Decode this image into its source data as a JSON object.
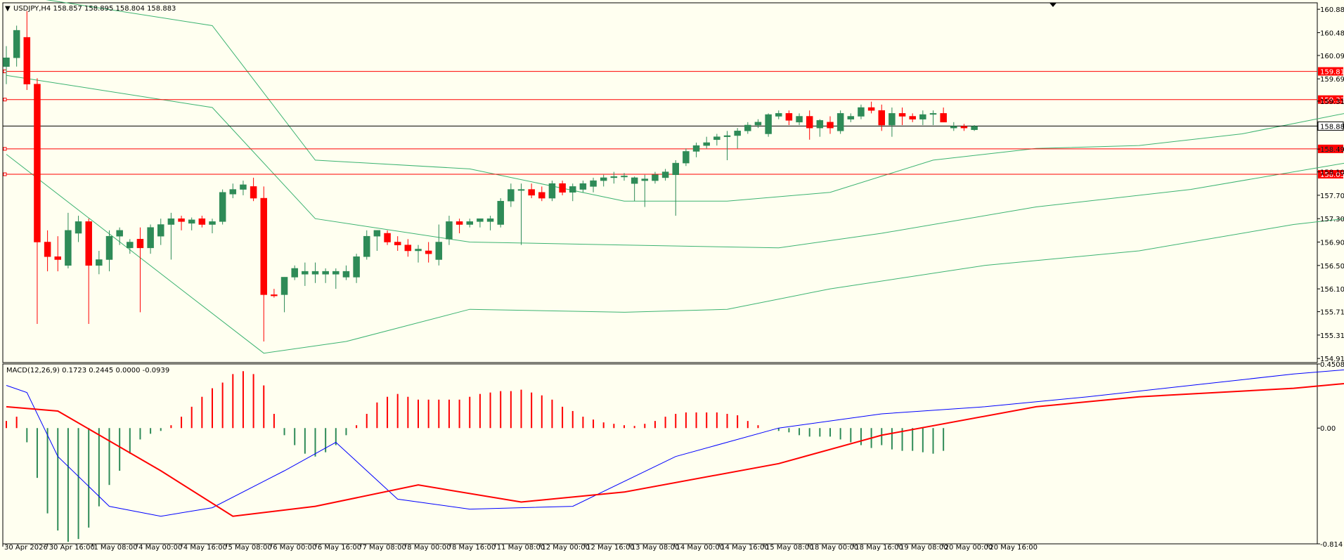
{
  "header": {
    "symbol_line": "USDJPY,H4  158.857 158.895 158.804 158.883",
    "indicator_line": "MACD(12,26,9) 0.1723 0.2445 0.0000 -0.0939"
  },
  "colors": {
    "background": "#fffff0",
    "bull": "#2e8b57",
    "bear": "#ff0000",
    "bands": "#3cb371",
    "macd_line": "#0000ff",
    "signal_line": "#ff0000",
    "level_line": "#ff0000",
    "price_line": "#000000"
  },
  "chart_data": [
    {
      "type": "candlestick",
      "title": "USDJPY,H4  158.857 158.895 158.804 158.883",
      "x_labels": [
        "30 Apr 2026",
        "30 Apr 16:00",
        "1 May 08:00",
        "4 May 00:00",
        "4 May 16:00",
        "5 May 08:00",
        "6 May 00:00",
        "6 May 16:00",
        "7 May 08:00",
        "8 May 00:00",
        "8 May 16:00",
        "11 May 08:00",
        "12 May 00:00",
        "12 May 16:00",
        "13 May 08:00",
        "14 May 00:00",
        "14 May 16:00",
        "15 May 08:00",
        "18 May 00:00",
        "18 May 16:00",
        "19 May 08:00",
        "20 May 00:00",
        "20 May 16:00"
      ],
      "y_ticks": [
        "160.880",
        "160.480",
        "160.090",
        "159.690",
        "159.310",
        "158.900",
        "158.490",
        "158.100",
        "157.700",
        "157.300",
        "156.900",
        "156.500",
        "156.100",
        "155.710",
        "155.310",
        "154.910"
      ],
      "ylim": [
        154.84,
        160.99
      ],
      "candles": [
        [
          159.9,
          160.25,
          159.6,
          160.05
        ],
        [
          160.05,
          160.6,
          159.9,
          160.52
        ],
        [
          160.4,
          160.85,
          159.5,
          159.6
        ],
        [
          159.6,
          159.7,
          155.5,
          156.9
        ],
        [
          156.9,
          157.1,
          156.4,
          156.65
        ],
        [
          156.65,
          157.0,
          156.4,
          156.6
        ],
        [
          156.5,
          157.4,
          156.45,
          157.1
        ],
        [
          157.05,
          157.35,
          156.9,
          157.25
        ],
        [
          157.25,
          157.3,
          155.5,
          156.5
        ],
        [
          156.5,
          156.75,
          156.35,
          156.6
        ],
        [
          156.6,
          157.1,
          156.4,
          157.0
        ],
        [
          157.0,
          157.15,
          156.85,
          157.1
        ],
        [
          156.8,
          156.95,
          156.7,
          156.9
        ],
        [
          156.95,
          157.15,
          155.7,
          156.8
        ],
        [
          156.8,
          157.2,
          156.7,
          157.15
        ],
        [
          157.0,
          157.3,
          156.85,
          157.2
        ],
        [
          157.2,
          157.4,
          156.6,
          157.3
        ],
        [
          157.3,
          157.35,
          157.1,
          157.25
        ],
        [
          157.22,
          157.32,
          157.1,
          157.28
        ],
        [
          157.3,
          157.35,
          157.15,
          157.2
        ],
        [
          157.2,
          157.3,
          157.05,
          157.25
        ],
        [
          157.25,
          157.8,
          157.2,
          157.75
        ],
        [
          157.72,
          157.9,
          157.65,
          157.8
        ],
        [
          157.8,
          157.95,
          157.7,
          157.88
        ],
        [
          157.85,
          158.0,
          157.6,
          157.65
        ],
        [
          157.65,
          157.85,
          155.2,
          156.0
        ],
        [
          156.0,
          156.1,
          155.95,
          155.98
        ],
        [
          156.0,
          156.3,
          155.7,
          156.3
        ],
        [
          156.3,
          156.5,
          156.25,
          156.45
        ],
        [
          156.35,
          156.55,
          156.15,
          156.4
        ],
        [
          156.35,
          156.55,
          156.2,
          156.4
        ],
        [
          156.35,
          156.45,
          156.2,
          156.4
        ],
        [
          156.35,
          156.45,
          156.1,
          156.4
        ],
        [
          156.3,
          156.5,
          156.25,
          156.4
        ],
        [
          156.3,
          156.7,
          156.2,
          156.65
        ],
        [
          156.65,
          157.1,
          156.6,
          157.0
        ],
        [
          157.0,
          157.1,
          156.75,
          157.1
        ],
        [
          157.05,
          157.1,
          156.85,
          156.9
        ],
        [
          156.9,
          157.0,
          156.75,
          156.85
        ],
        [
          156.85,
          156.95,
          156.65,
          156.75
        ],
        [
          156.75,
          156.85,
          156.55,
          156.78
        ],
        [
          156.75,
          156.9,
          156.55,
          156.7
        ],
        [
          156.6,
          157.2,
          156.5,
          156.9
        ],
        [
          156.95,
          157.35,
          156.85,
          157.25
        ],
        [
          157.25,
          157.3,
          157.05,
          157.2
        ],
        [
          157.2,
          157.3,
          157.15,
          157.25
        ],
        [
          157.25,
          157.3,
          157.15,
          157.3
        ],
        [
          157.25,
          157.35,
          157.1,
          157.3
        ],
        [
          157.2,
          157.65,
          157.15,
          157.6
        ],
        [
          157.6,
          157.9,
          157.5,
          157.8
        ],
        [
          157.8,
          157.9,
          156.85,
          157.8
        ],
        [
          157.8,
          157.9,
          157.65,
          157.7
        ],
        [
          157.75,
          157.85,
          157.6,
          157.65
        ],
        [
          157.65,
          157.95,
          157.6,
          157.9
        ],
        [
          157.9,
          157.95,
          157.7,
          157.75
        ],
        [
          157.75,
          157.9,
          157.6,
          157.85
        ],
        [
          157.8,
          157.95,
          157.75,
          157.9
        ],
        [
          157.85,
          158.0,
          157.75,
          157.95
        ],
        [
          157.95,
          158.05,
          157.85,
          158.0
        ],
        [
          158.0,
          158.1,
          157.9,
          158.02
        ],
        [
          158.02,
          158.08,
          157.95,
          158.03
        ],
        [
          157.9,
          158.02,
          157.6,
          158.0
        ],
        [
          157.95,
          158.05,
          157.5,
          157.98
        ],
        [
          157.95,
          158.1,
          157.9,
          158.05
        ],
        [
          158.0,
          158.15,
          157.95,
          158.1
        ],
        [
          158.05,
          158.3,
          157.35,
          158.25
        ],
        [
          158.25,
          158.5,
          158.2,
          158.45
        ],
        [
          158.45,
          158.6,
          158.35,
          158.55
        ],
        [
          158.55,
          158.7,
          158.5,
          158.6
        ],
        [
          158.65,
          158.75,
          158.55,
          158.7
        ],
        [
          158.7,
          158.8,
          158.3,
          158.72
        ],
        [
          158.72,
          158.85,
          158.5,
          158.8
        ],
        [
          158.8,
          158.95,
          158.75,
          158.9
        ],
        [
          158.9,
          159.0,
          158.85,
          158.95
        ],
        [
          158.75,
          159.1,
          158.7,
          159.08
        ],
        [
          159.05,
          159.15,
          159.0,
          159.1
        ],
        [
          159.1,
          159.15,
          158.9,
          158.98
        ],
        [
          158.95,
          159.1,
          158.9,
          159.05
        ],
        [
          159.05,
          159.15,
          158.65,
          158.85
        ],
        [
          158.85,
          159.0,
          158.7,
          158.98
        ],
        [
          158.95,
          159.05,
          158.75,
          158.85
        ],
        [
          158.8,
          159.15,
          158.75,
          159.1
        ],
        [
          159.0,
          159.1,
          158.95,
          159.05
        ],
        [
          159.05,
          159.25,
          159.0,
          159.2
        ],
        [
          159.2,
          159.3,
          159.1,
          159.15
        ],
        [
          159.15,
          159.25,
          158.8,
          158.9
        ],
        [
          158.9,
          159.2,
          158.7,
          159.1
        ],
        [
          159.1,
          159.2,
          158.9,
          159.05
        ],
        [
          159.05,
          159.1,
          158.95,
          159.0
        ],
        [
          159.0,
          159.15,
          158.9,
          159.08
        ],
        [
          159.1,
          159.15,
          158.9,
          159.1
        ],
        [
          159.1,
          159.2,
          158.95,
          158.95
        ],
        [
          158.85,
          158.95,
          158.8,
          158.88
        ],
        [
          158.88,
          158.92,
          158.8,
          158.85
        ],
        [
          158.82,
          158.9,
          158.8,
          158.88
        ]
      ],
      "bollinger": {
        "upper": [
          [
            0,
            161.15
          ],
          [
            20,
            160.6
          ],
          [
            30,
            158.3
          ],
          [
            45,
            158.15
          ],
          [
            60,
            157.6
          ],
          [
            70,
            157.6
          ],
          [
            80,
            157.75
          ],
          [
            90,
            158.3
          ],
          [
            100,
            158.5
          ],
          [
            110,
            158.55
          ],
          [
            120,
            158.75
          ],
          [
            130,
            159.1
          ],
          [
            140,
            159.25
          ],
          [
            150,
            159.36
          ],
          [
            160,
            159.3
          ],
          [
            170,
            159.25
          ]
        ],
        "middle": [
          [
            0,
            159.75
          ],
          [
            20,
            159.2
          ],
          [
            30,
            157.3
          ],
          [
            45,
            156.9
          ],
          [
            60,
            156.85
          ],
          [
            75,
            156.8
          ],
          [
            85,
            157.05
          ],
          [
            100,
            157.5
          ],
          [
            115,
            157.8
          ],
          [
            130,
            158.25
          ],
          [
            140,
            158.6
          ],
          [
            150,
            158.9
          ],
          [
            160,
            159.0
          ],
          [
            170,
            158.95
          ]
        ],
        "lower": [
          [
            0,
            158.4
          ],
          [
            25,
            155.0
          ],
          [
            33,
            155.2
          ],
          [
            45,
            155.75
          ],
          [
            60,
            155.7
          ],
          [
            70,
            155.75
          ],
          [
            80,
            156.1
          ],
          [
            95,
            156.5
          ],
          [
            110,
            156.75
          ],
          [
            125,
            157.2
          ],
          [
            135,
            157.4
          ],
          [
            150,
            157.8
          ],
          [
            160,
            158.35
          ],
          [
            170,
            158.7
          ]
        ]
      },
      "levels": [
        {
          "price": 159.818,
          "label": "159.818"
        },
        {
          "price": 159.336,
          "label": "159.336"
        },
        {
          "price": 158.493,
          "label": "158.493"
        },
        {
          "price": 158.059,
          "label": "158.059"
        }
      ],
      "current_price": {
        "price": 158.883,
        "label": "158.883"
      }
    },
    {
      "type": "macd",
      "title": "MACD(12,26,9) 0.1723 0.2445 0.0000 -0.0939",
      "y_ticks": [
        "0.4508",
        "0.00",
        "-0.814"
      ],
      "ylim": [
        -0.814,
        0.4508
      ],
      "histogram": [
        0.05,
        0.08,
        -0.1,
        -0.35,
        -0.6,
        -0.72,
        -0.8,
        -0.78,
        -0.7,
        -0.55,
        -0.4,
        -0.3,
        -0.18,
        -0.08,
        -0.04,
        -0.02,
        0.02,
        0.08,
        0.15,
        0.22,
        0.28,
        0.32,
        0.38,
        0.4,
        0.38,
        0.3,
        0.1,
        -0.05,
        -0.12,
        -0.18,
        -0.2,
        -0.17,
        -0.12,
        -0.05,
        0.02,
        0.1,
        0.18,
        0.22,
        0.24,
        0.22,
        0.2,
        0.2,
        0.2,
        0.2,
        0.2,
        0.22,
        0.24,
        0.25,
        0.26,
        0.26,
        0.27,
        0.25,
        0.23,
        0.2,
        0.15,
        0.12,
        0.08,
        0.06,
        0.04,
        0.03,
        0.02,
        0.015,
        0.03,
        0.05,
        0.08,
        0.1,
        0.11,
        0.11,
        0.11,
        0.11,
        0.1,
        0.09,
        0.05,
        0.02,
        0.0,
        -0.02,
        -0.03,
        -0.05,
        -0.06,
        -0.06,
        -0.06,
        -0.08,
        -0.1,
        -0.12,
        -0.14,
        -0.12,
        -0.15,
        -0.16,
        -0.16,
        -0.17,
        -0.18,
        -0.16
      ],
      "macd_line": [
        [
          0,
          0.3
        ],
        [
          2,
          0.25
        ],
        [
          5,
          -0.2
        ],
        [
          10,
          -0.55
        ],
        [
          15,
          -0.62
        ],
        [
          20,
          -0.56
        ],
        [
          27,
          -0.3
        ],
        [
          32,
          -0.1
        ],
        [
          38,
          -0.5
        ],
        [
          45,
          -0.57
        ],
        [
          55,
          -0.55
        ],
        [
          65,
          -0.2
        ],
        [
          75,
          0.0
        ],
        [
          85,
          0.1
        ],
        [
          95,
          0.15
        ],
        [
          105,
          0.22
        ],
        [
          115,
          0.3
        ],
        [
          125,
          0.38
        ],
        [
          135,
          0.44
        ],
        [
          145,
          0.4
        ],
        [
          155,
          0.35
        ],
        [
          165,
          0.28
        ],
        [
          170,
          0.18
        ]
      ],
      "signal_line": [
        [
          0,
          0.15
        ],
        [
          5,
          0.12
        ],
        [
          15,
          -0.3
        ],
        [
          22,
          -0.62
        ],
        [
          30,
          -0.55
        ],
        [
          40,
          -0.4
        ],
        [
          50,
          -0.52
        ],
        [
          60,
          -0.45
        ],
        [
          75,
          -0.25
        ],
        [
          85,
          -0.05
        ],
        [
          100,
          0.15
        ],
        [
          110,
          0.22
        ],
        [
          125,
          0.28
        ],
        [
          140,
          0.38
        ],
        [
          150,
          0.4
        ],
        [
          160,
          0.35
        ],
        [
          170,
          0.25
        ]
      ]
    }
  ]
}
